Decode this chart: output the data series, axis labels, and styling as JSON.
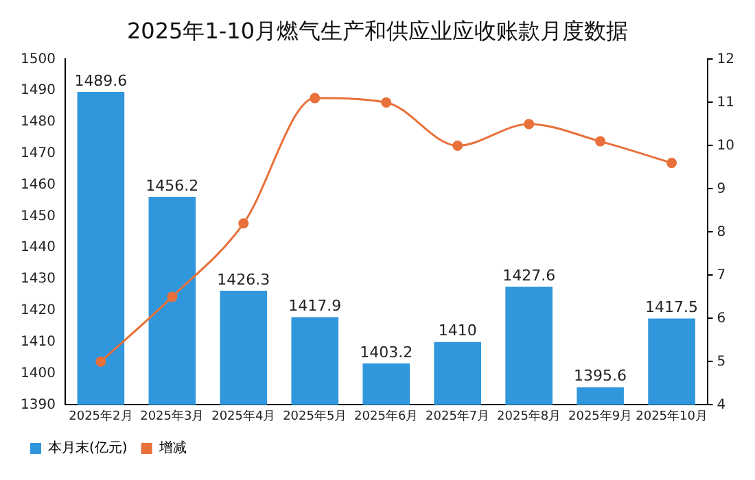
{
  "chart_data": {
    "type": "bar",
    "title": "2025年1-10月燃气生产和供应业应收账款月度数据",
    "categories": [
      "2025年2月",
      "2025年3月",
      "2025年4月",
      "2025年5月",
      "2025年6月",
      "2025年7月",
      "2025年8月",
      "2025年9月",
      "2025年10月"
    ],
    "series": [
      {
        "name": "本月末(亿元)",
        "color": "#3097dc",
        "values": [
          1489.6,
          1456.2,
          1426.3,
          1417.9,
          1403.2,
          1410,
          1427.6,
          1395.6,
          1417.5
        ],
        "value_labels": [
          "1489.6",
          "1456.2",
          "1426.3",
          "1417.9",
          "1403.2",
          "1410",
          "1427.6",
          "1395.6",
          "1417.5"
        ]
      },
      {
        "name": "增减",
        "type": "line",
        "axis": "y2",
        "color": "#e8703a",
        "values": [
          5.0,
          6.5,
          8.2,
          11.1,
          11.0,
          10.0,
          10.5,
          10.1,
          9.6
        ],
        "marker": "circle"
      }
    ],
    "ylim": [
      1390,
      1500
    ],
    "yticks": [
      1390,
      1400,
      1410,
      1420,
      1430,
      1440,
      1450,
      1460,
      1470,
      1480,
      1490,
      1500
    ],
    "y2lim": [
      4,
      12
    ],
    "y2ticks": [
      4,
      5,
      6,
      7,
      8,
      9,
      10,
      11,
      12
    ],
    "grid": false,
    "legend": "bottom left"
  }
}
